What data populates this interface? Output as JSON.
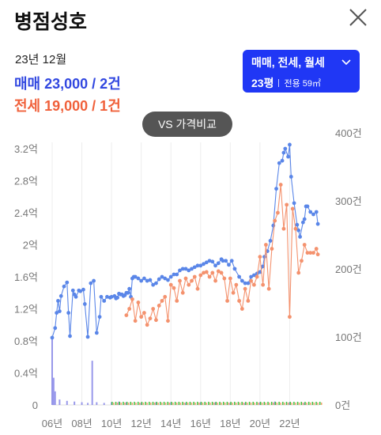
{
  "header": {
    "title": "병점성호",
    "close_icon": "close-icon"
  },
  "summary": {
    "period": "23년 12월",
    "sale": "매매 23,000 / 2건",
    "jeonse": "전세 19,000 / 1건"
  },
  "type_selector": {
    "label": "매매, 전세, 월세",
    "pyeong": "23평",
    "area": "전용 59㎡",
    "icon": "chevron-down-icon"
  },
  "compare_button": {
    "label": "VS 가격비교"
  },
  "colors": {
    "sale": "#5a86e8",
    "jeonse": "#f4926e",
    "volume_sale": "#7f7fe6",
    "volume_jeonse": "#f2a06e",
    "volume_monthly": "#3fbf3f",
    "accent": "#2037f5"
  },
  "chart_data": {
    "type": "line",
    "x_tick_labels": [
      "06년",
      "08년",
      "10년",
      "12년",
      "14년",
      "16년",
      "18년",
      "20년",
      "22년"
    ],
    "x_tick_years": [
      2006,
      2008,
      2010,
      2012,
      2014,
      2016,
      2018,
      2020,
      2022
    ],
    "xlim": [
      2006.0,
      2024.0
    ],
    "left_axis": {
      "ticks": [
        "0",
        "0.4억",
        "0.8억",
        "1.2억",
        "1.6억",
        "2억",
        "2.4억",
        "2.8억",
        "3.2억"
      ],
      "ylim": [
        0,
        3.4
      ]
    },
    "right_axis": {
      "ticks": [
        "0건",
        "100건",
        "200건",
        "300건",
        "400건"
      ],
      "ylim": [
        0,
        400
      ]
    },
    "grid": "vertical",
    "series": [
      {
        "key": "sale",
        "x": [
          2006.0,
          2006.2,
          2006.3,
          2006.4,
          2006.5,
          2006.6,
          2006.8,
          2007.0,
          2007.1,
          2007.2,
          2007.4,
          2007.5,
          2007.6,
          2007.8,
          2007.9,
          2008.1,
          2008.2,
          2008.4,
          2008.6,
          2008.8,
          2009.0,
          2009.2,
          2009.3,
          2009.5,
          2009.7,
          2009.9,
          2010.0,
          2010.2,
          2010.3,
          2010.4,
          2010.5,
          2010.6,
          2010.7,
          2010.8,
          2010.9,
          2011.0,
          2011.1,
          2011.2,
          2011.3,
          2011.4,
          2011.5,
          2011.6,
          2011.8,
          2012.0,
          2012.2,
          2012.4,
          2012.6,
          2012.8,
          2013.0,
          2013.2,
          2013.4,
          2013.6,
          2013.8,
          2014.0,
          2014.2,
          2014.4,
          2014.6,
          2014.8,
          2015.0,
          2015.2,
          2015.4,
          2015.6,
          2015.8,
          2016.0,
          2016.2,
          2016.4,
          2016.6,
          2016.8,
          2017.0,
          2017.2,
          2017.4,
          2017.5,
          2017.7,
          2017.9,
          2018.1,
          2018.3,
          2018.6,
          2018.8,
          2019.0,
          2019.2,
          2019.4,
          2019.6,
          2019.8,
          2020.0,
          2020.2,
          2020.3,
          2020.5,
          2020.7,
          2020.9,
          2021.1,
          2021.3,
          2021.5,
          2021.6,
          2021.7,
          2021.9,
          2022.0,
          2022.1,
          2022.3,
          2022.5,
          2022.6,
          2022.7,
          2022.9,
          2023.0,
          2023.1,
          2023.2,
          2023.4,
          2023.6,
          2023.8,
          2023.9
        ],
        "values": [
          0.84,
          0.96,
          1.15,
          1.3,
          1.17,
          1.36,
          1.48,
          1.53,
          1.15,
          0.86,
          1.43,
          1.38,
          1.35,
          1.43,
          1.42,
          1.44,
          1.26,
          0.85,
          1.52,
          1.55,
          0.9,
          1.1,
          1.35,
          1.3,
          1.35,
          1.34,
          1.35,
          1.36,
          1.33,
          1.34,
          1.39,
          1.38,
          1.38,
          1.36,
          1.37,
          1.4,
          1.4,
          1.45,
          1.35,
          1.58,
          1.6,
          1.6,
          1.58,
          1.55,
          1.58,
          1.55,
          1.56,
          1.5,
          1.52,
          1.57,
          1.6,
          1.58,
          1.56,
          1.6,
          1.63,
          1.63,
          1.68,
          1.7,
          1.7,
          1.68,
          1.7,
          1.72,
          1.74,
          1.74,
          1.76,
          1.78,
          1.8,
          1.79,
          1.74,
          1.77,
          1.82,
          1.8,
          1.8,
          1.75,
          1.8,
          1.7,
          1.6,
          1.55,
          1.52,
          1.52,
          1.6,
          1.62,
          1.64,
          1.66,
          1.73,
          1.85,
          1.92,
          2.05,
          2.24,
          2.7,
          3.02,
          3.05,
          3.15,
          3.2,
          3.1,
          3.25,
          2.85,
          2.52,
          2.25,
          2.18,
          2.1,
          2.28,
          2.32,
          2.48,
          2.48,
          2.41,
          2.38,
          2.41,
          2.26
        ],
        "color_key": "sale"
      },
      {
        "key": "jeonse",
        "x": [
          2011.0,
          2011.2,
          2011.4,
          2011.6,
          2011.8,
          2012.0,
          2012.2,
          2012.4,
          2012.6,
          2012.8,
          2013.0,
          2013.2,
          2013.4,
          2013.6,
          2013.8,
          2014.0,
          2014.2,
          2014.4,
          2014.6,
          2014.8,
          2015.0,
          2015.2,
          2015.4,
          2015.6,
          2015.8,
          2016.0,
          2016.2,
          2016.4,
          2016.6,
          2016.8,
          2017.0,
          2017.2,
          2017.4,
          2017.6,
          2017.8,
          2018.0,
          2018.2,
          2018.4,
          2018.6,
          2018.8,
          2019.0,
          2019.2,
          2019.4,
          2019.6,
          2019.8,
          2020.0,
          2020.2,
          2020.4,
          2020.6,
          2020.8,
          2021.0,
          2021.2,
          2021.4,
          2021.6,
          2021.8,
          2022.0,
          2022.2,
          2022.4,
          2022.6,
          2022.8,
          2023.0,
          2023.2,
          2023.4,
          2023.6,
          2023.8,
          2023.9
        ],
        "values": [
          1.12,
          1.2,
          1.32,
          1.05,
          1.28,
          1.1,
          1.15,
          1.0,
          1.08,
          1.2,
          1.06,
          1.24,
          1.3,
          1.35,
          1.05,
          1.5,
          1.46,
          1.3,
          1.55,
          1.4,
          1.58,
          1.5,
          1.55,
          1.6,
          1.45,
          1.62,
          1.65,
          1.66,
          1.6,
          1.65,
          1.55,
          1.67,
          1.65,
          1.58,
          1.3,
          1.58,
          1.4,
          1.5,
          1.3,
          1.2,
          1.45,
          1.3,
          1.55,
          1.5,
          1.6,
          1.85,
          1.5,
          2.0,
          1.45,
          1.95,
          2.3,
          2.4,
          2.75,
          2.2,
          2.5,
          1.1,
          2.45,
          2.2,
          1.65,
          1.8,
          2.0,
          1.9,
          1.9,
          1.9,
          1.95,
          1.88
        ],
        "color_key": "jeonse"
      }
    ],
    "volume": {
      "sale_x": [
        2006.0,
        2006.1,
        2006.2,
        2006.5,
        2007.0,
        2007.5,
        2008.0,
        2008.4,
        2008.7,
        2009.0,
        2009.5,
        2010.0,
        2010.5,
        2011.0,
        2012.0,
        2013.0,
        2014.0,
        2015.0,
        2016.0,
        2017.0,
        2018.0,
        2019.0,
        2020.0,
        2021.0,
        2022.0,
        2023.0
      ],
      "sale_counts": [
        100,
        40,
        20,
        8,
        6,
        5,
        4,
        3,
        65,
        4,
        3,
        4,
        5,
        4,
        3,
        4,
        4,
        3,
        4,
        4,
        3,
        3,
        4,
        5,
        4,
        3
      ]
    }
  }
}
